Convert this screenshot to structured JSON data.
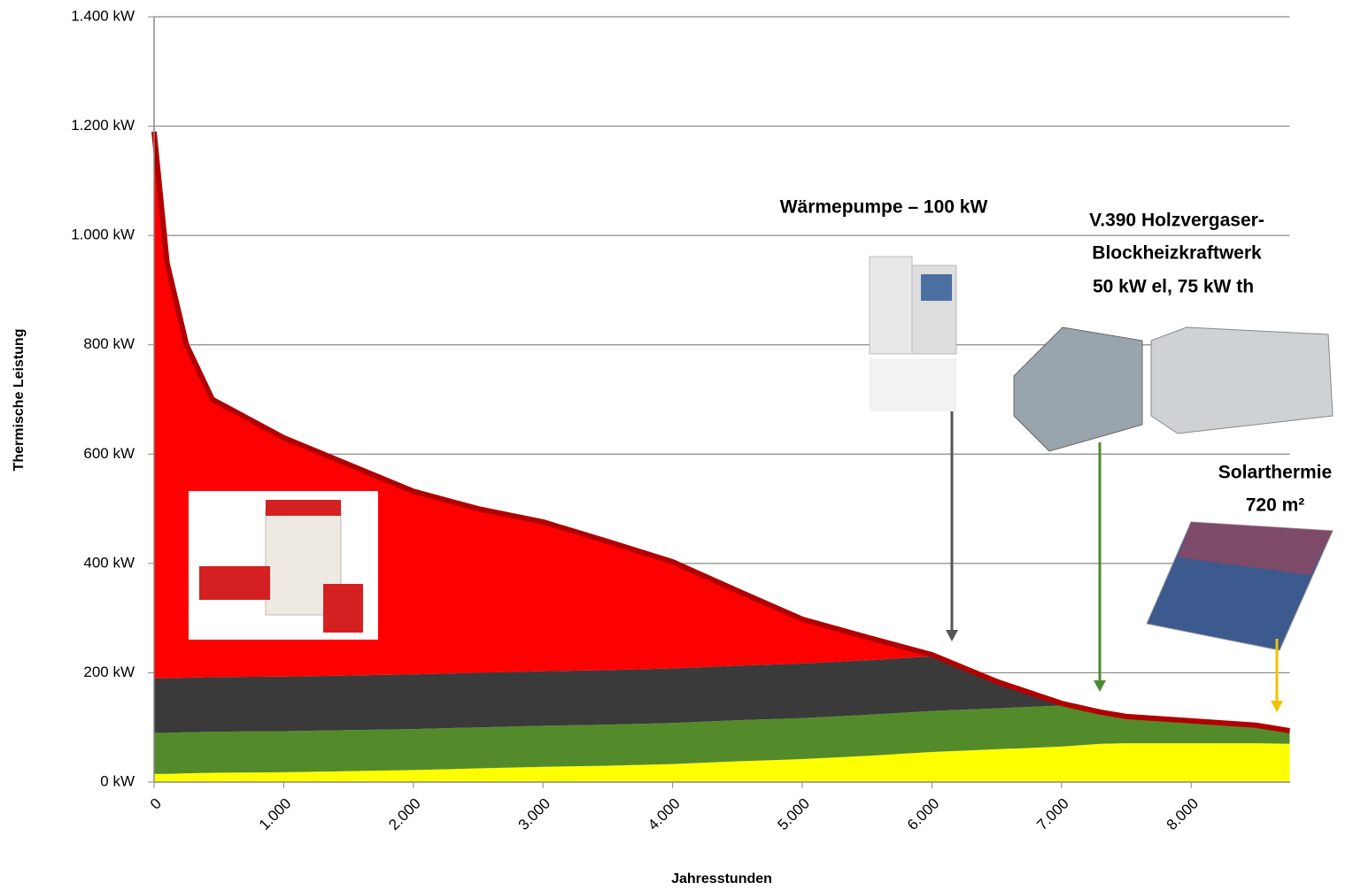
{
  "chart_data": {
    "type": "stacked-area",
    "x_label": "Jahresstunden",
    "y_label": "Thermische Leistung",
    "annotations": [
      "Wärmepumpe – 100 kW",
      "V.390 Holzvergaser-",
      "Blockheizkraftwerk",
      "50 kW el, 75 kW th",
      "Solarthermie",
      "720 m²"
    ],
    "x": [
      0,
      100,
      250,
      450,
      1000,
      1500,
      2000,
      2500,
      3000,
      3500,
      4000,
      4500,
      5000,
      5500,
      6000,
      6500,
      7000,
      7300,
      7500,
      8000,
      8500,
      8760
    ],
    "series": [
      {
        "color": "#ffff00",
        "values": [
          15,
          15,
          16,
          17,
          18,
          20,
          22,
          25,
          28,
          30,
          33,
          38,
          42,
          48,
          55,
          60,
          65,
          70,
          71,
          71,
          71,
          70
        ]
      },
      {
        "color": "#548b2a",
        "values": [
          75,
          75,
          75,
          75,
          75,
          75,
          75,
          75,
          75,
          75,
          75,
          75,
          75,
          75,
          75,
          75,
          75,
          55,
          47,
          39,
          31,
          22
        ]
      },
      {
        "color": "#3a3a3a",
        "values": [
          100,
          100,
          100,
          100,
          100,
          100,
          100,
          100,
          100,
          100,
          100,
          100,
          100,
          100,
          100,
          49,
          4,
          0,
          0,
          0,
          0,
          0
        ]
      },
      {
        "color": "#ff0000",
        "values": [
          1000,
          760,
          609,
          508,
          437,
          386,
          335,
          300,
          273,
          235,
          195,
          137,
          81,
          42,
          3,
          0,
          0,
          3,
          2,
          2,
          2,
          2
        ]
      }
    ],
    "xlim": [
      0,
      8760
    ],
    "xticks": [
      0,
      {
        "value": 1000,
        "label": "1.000"
      },
      {
        "value": 2000,
        "label": "2.000"
      },
      {
        "value": 3000,
        "label": "3.000"
      },
      {
        "value": 4000,
        "label": "4.000"
      },
      {
        "value": 5000,
        "label": "5.000"
      },
      {
        "value": 6000,
        "label": "6.000"
      },
      {
        "value": 7000,
        "label": "7.000"
      },
      {
        "value": 8000,
        "label": "8.000"
      }
    ],
    "ylim": [
      0,
      1400
    ],
    "yticks": [
      {
        "value": 0,
        "label": "0 kW"
      },
      {
        "value": 200,
        "label": "200 kW"
      },
      {
        "value": 400,
        "label": "400 kW"
      },
      {
        "value": 600,
        "label": "600 kW"
      },
      {
        "value": 800,
        "label": "800 kW"
      },
      {
        "value": 1000,
        "label": "1.000 kW"
      },
      {
        "value": 1200,
        "label": "1.200 kW"
      },
      {
        "value": 1400,
        "label": "1.400 kW"
      }
    ],
    "grid": true,
    "top_outline_color": "#b00000"
  }
}
